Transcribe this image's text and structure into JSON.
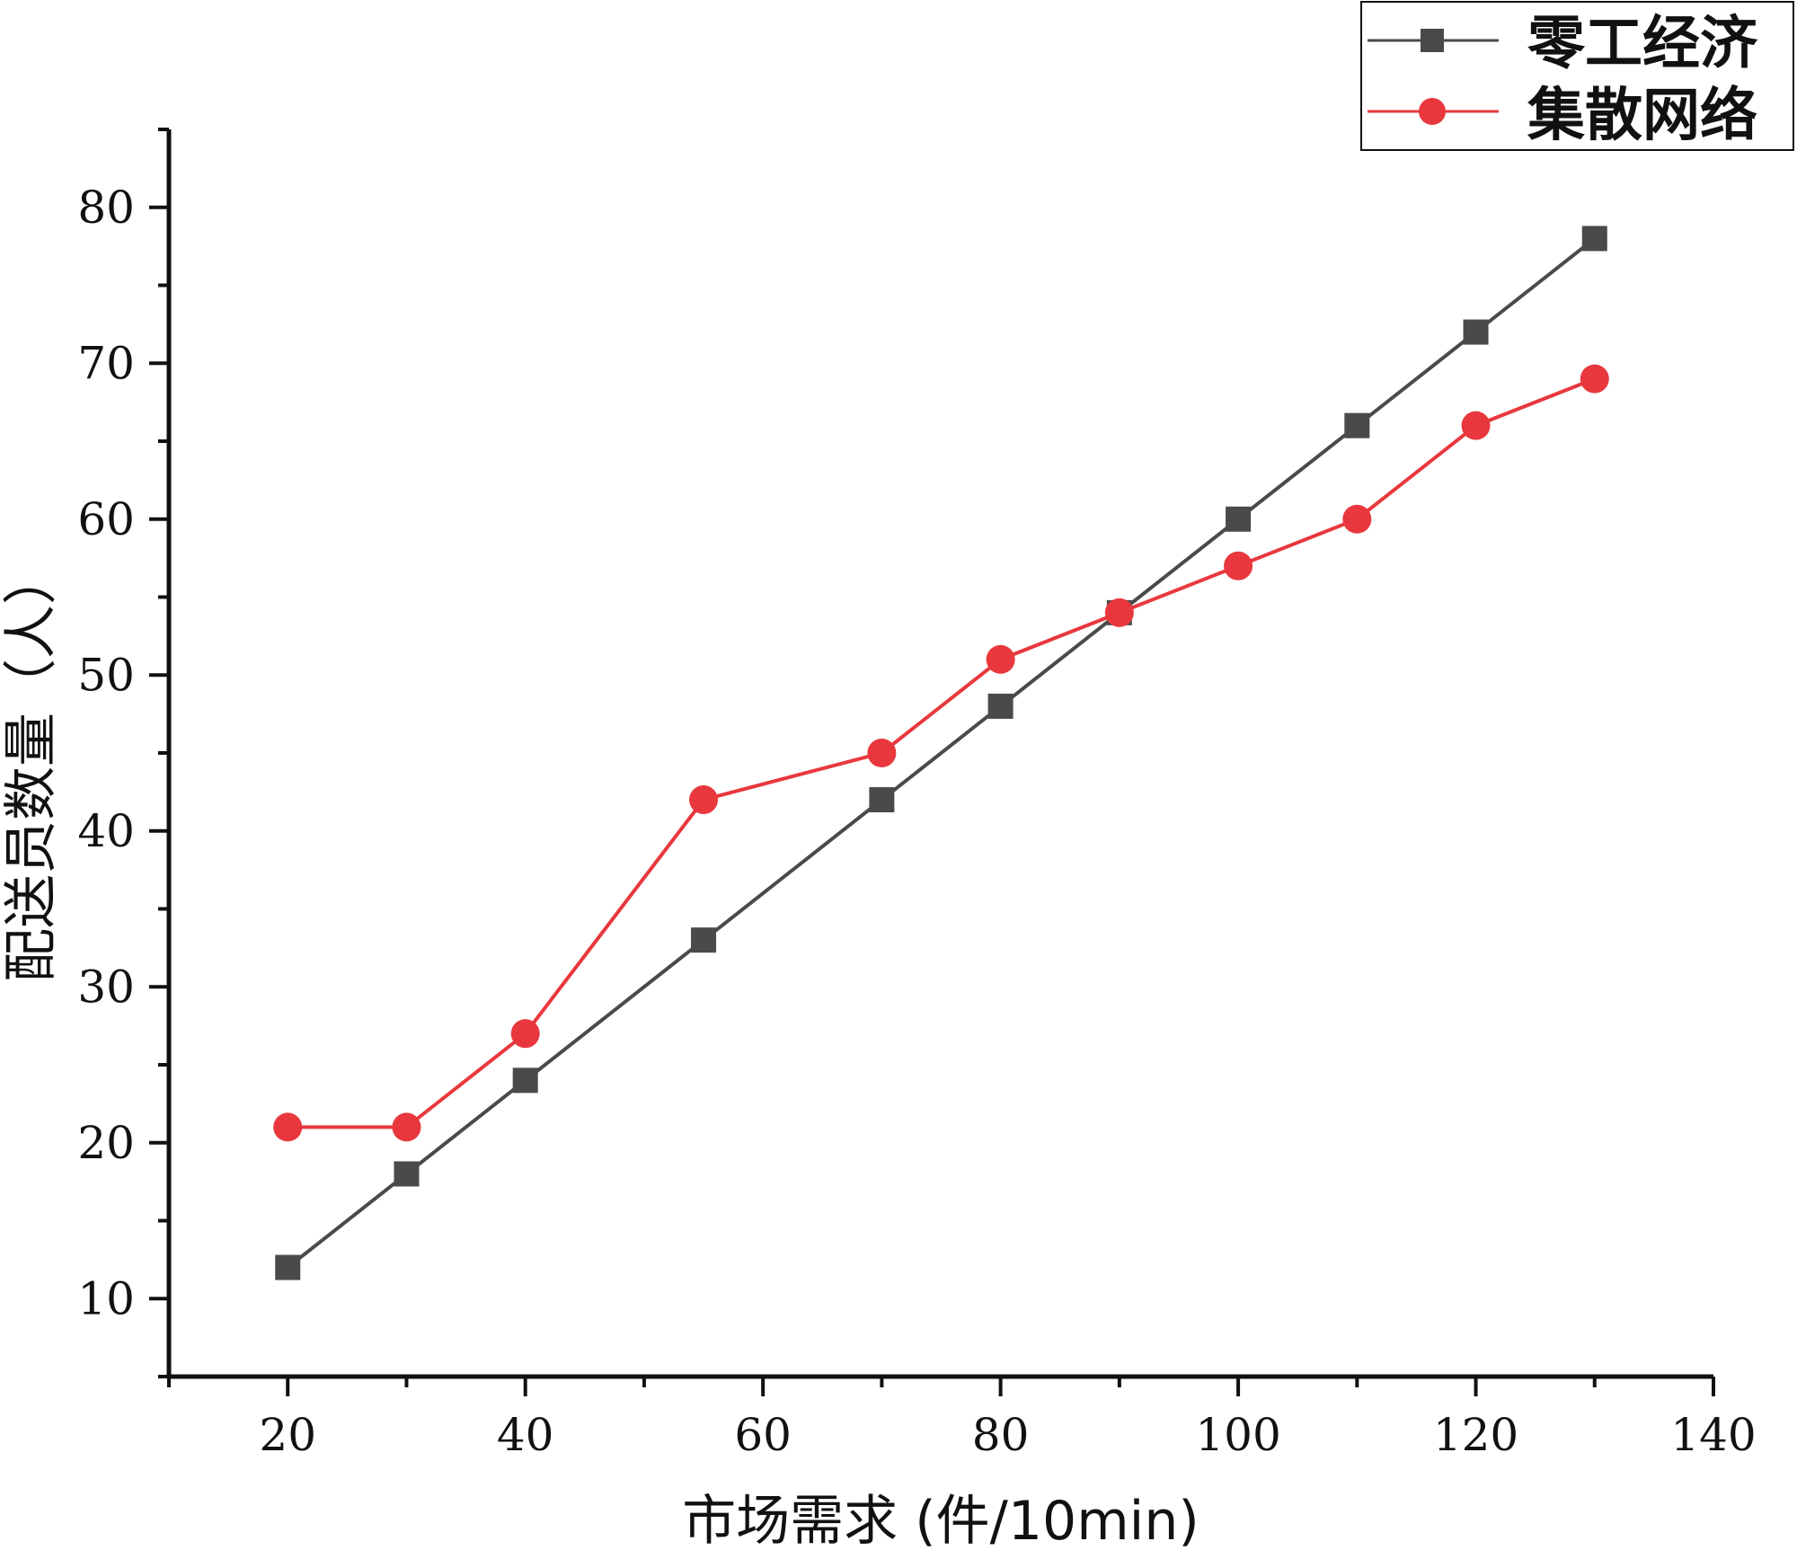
{
  "chart_data": {
    "type": "line",
    "title": "",
    "xlabel": "市场需求 (件/10min)",
    "ylabel": "配送员数量（人）",
    "xlim": [
      10,
      140
    ],
    "ylim": [
      5,
      85
    ],
    "x_ticks": [
      20,
      40,
      60,
      80,
      100,
      120,
      140
    ],
    "x_ticks_minor": [
      10,
      30,
      50,
      70,
      90,
      110,
      130
    ],
    "y_ticks": [
      10,
      20,
      30,
      40,
      50,
      60,
      70,
      80
    ],
    "y_ticks_minor": [
      5,
      15,
      25,
      35,
      45,
      55,
      65,
      75,
      85
    ],
    "grid": false,
    "legend_position": "top-right",
    "series": [
      {
        "name": "零工经济",
        "color": "#4a4a4a",
        "marker": "square",
        "points": [
          {
            "x": 20,
            "y": 12
          },
          {
            "x": 30,
            "y": 18
          },
          {
            "x": 40,
            "y": 24
          },
          {
            "x": 55,
            "y": 33
          },
          {
            "x": 70,
            "y": 42
          },
          {
            "x": 80,
            "y": 48
          },
          {
            "x": 90,
            "y": 54
          },
          {
            "x": 100,
            "y": 60
          },
          {
            "x": 110,
            "y": 66
          },
          {
            "x": 120,
            "y": 72
          },
          {
            "x": 130,
            "y": 78
          }
        ]
      },
      {
        "name": "集散网络",
        "color": "#e8383d",
        "marker": "circle",
        "points": [
          {
            "x": 20,
            "y": 21
          },
          {
            "x": 30,
            "y": 21
          },
          {
            "x": 40,
            "y": 27
          },
          {
            "x": 55,
            "y": 42
          },
          {
            "x": 70,
            "y": 45
          },
          {
            "x": 80,
            "y": 51
          },
          {
            "x": 90,
            "y": 54
          },
          {
            "x": 100,
            "y": 57
          },
          {
            "x": 110,
            "y": 60
          },
          {
            "x": 120,
            "y": 66
          },
          {
            "x": 130,
            "y": 69
          }
        ]
      }
    ]
  }
}
